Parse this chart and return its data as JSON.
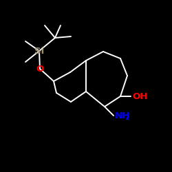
{
  "bg_color": "#000000",
  "bond_color": "#ffffff",
  "Si_color": "#a09070",
  "O_color": "#ff0000",
  "N_color": "#0000ee",
  "lw": 1.4,
  "figsize": [
    2.5,
    2.5
  ],
  "dpi": 100,
  "Si_label": "Si",
  "O_label": "O",
  "OH_label": "OH",
  "NH2_label": "NH",
  "sub2": "2"
}
